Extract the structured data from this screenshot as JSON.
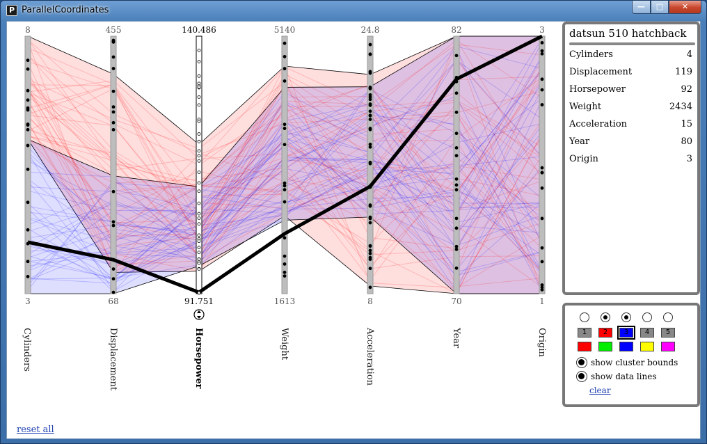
{
  "window": {
    "title": "ParallelCoordinates",
    "app_icon_glyph": "P"
  },
  "title_controls": {
    "minimize": "—",
    "maximize": "□",
    "close": "✕"
  },
  "axes": [
    {
      "name": "Cylinders",
      "max_label": "8",
      "min_label": "3",
      "min": 3,
      "max": 8
    },
    {
      "name": "Displacement",
      "max_label": "455",
      "min_label": "68",
      "min": 68,
      "max": 455
    },
    {
      "name": "Horsepower",
      "max_label": "140.486",
      "min_label": "91.751",
      "min": 91.751,
      "max": 140.486,
      "active": true
    },
    {
      "name": "Weight",
      "max_label": "5140",
      "min_label": "1613",
      "min": 1613,
      "max": 5140
    },
    {
      "name": "Acceleration",
      "max_label": "24.8",
      "min_label": "8",
      "min": 8,
      "max": 24.8
    },
    {
      "name": "Year",
      "max_label": "82",
      "min_label": "70",
      "min": 70,
      "max": 82
    },
    {
      "name": "Origin",
      "max_label": "3",
      "min_label": "1",
      "min": 1,
      "max": 3
    }
  ],
  "selected_record": {
    "name": "datsun 510 hatchback",
    "fields": [
      {
        "label": "Cylinders",
        "value": "4"
      },
      {
        "label": "Displacement",
        "value": "119"
      },
      {
        "label": "Horsepower",
        "value": "92"
      },
      {
        "label": "Weight",
        "value": "2434"
      },
      {
        "label": "Acceleration",
        "value": "15"
      },
      {
        "label": "Year",
        "value": "80"
      },
      {
        "label": "Origin",
        "value": "3"
      }
    ]
  },
  "clusters": {
    "radios": [
      false,
      true,
      true,
      false,
      false
    ],
    "buttons": [
      "1",
      "2",
      "3",
      "4",
      "5"
    ],
    "button_colors": [
      "#888888",
      "#ff0000",
      "#0000ff",
      "#888888",
      "#888888"
    ],
    "selected_button": 2,
    "swatches": [
      "#ff0000",
      "#00ee00",
      "#0000ff",
      "#ffff00",
      "#ff00ff"
    ]
  },
  "options": {
    "show_cluster_bounds": "show cluster bounds",
    "show_data_lines": "show data lines",
    "clear": "clear"
  },
  "reset_all": "reset all",
  "colors": {
    "cluster_red": "#ff0000",
    "cluster_blue": "#0000ff",
    "axis_gray": "#bdbdbd"
  }
}
